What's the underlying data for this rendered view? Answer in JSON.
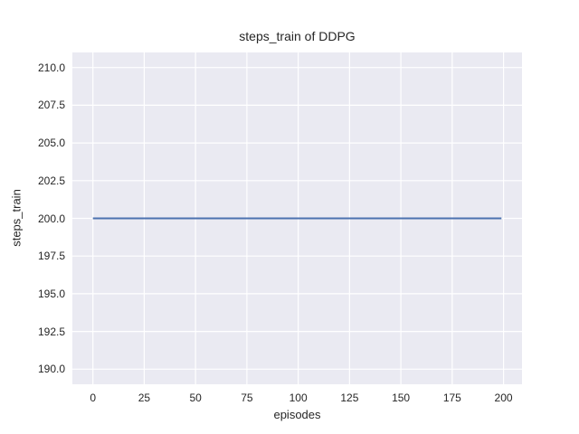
{
  "figure": {
    "background": "#ffffff",
    "plot_background": "#eaeaf2",
    "grid_color": "#ffffff",
    "text_color": "#262626"
  },
  "chart_data": {
    "type": "line",
    "title": "steps_train of DDPG",
    "xlabel": "episodes",
    "ylabel": "steps_train",
    "x_ticks": [
      "0",
      "25",
      "50",
      "75",
      "100",
      "125",
      "150",
      "175",
      "200"
    ],
    "x_tick_values": [
      0,
      25,
      50,
      75,
      100,
      125,
      150,
      175,
      200
    ],
    "y_ticks": [
      "190.0",
      "192.5",
      "195.0",
      "197.5",
      "200.0",
      "202.5",
      "205.0",
      "207.5",
      "210.0"
    ],
    "y_tick_values": [
      190.0,
      192.5,
      195.0,
      197.5,
      200.0,
      202.5,
      205.0,
      207.5,
      210.0
    ],
    "xlim": [
      -10,
      209
    ],
    "ylim": [
      189,
      211
    ],
    "grid": true,
    "legend": false,
    "style": "seaborn-darkgrid",
    "series": [
      {
        "name": "steps_train",
        "color": "#4c72b0",
        "line_width": 2,
        "x": [
          0,
          199
        ],
        "values": [
          200,
          200
        ],
        "note": "constant value 200 for every episode from 0 to 199"
      }
    ]
  }
}
